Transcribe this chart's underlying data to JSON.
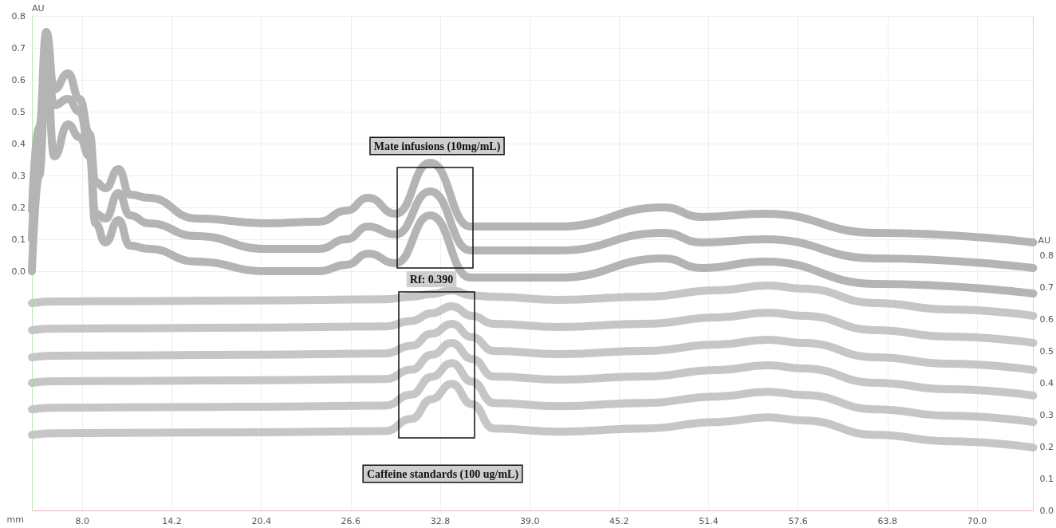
{
  "chart_data": {
    "type": "line",
    "xlabel": "mm",
    "ylabel": "AU",
    "y2label": "AU",
    "xlim": [
      4.5,
      73.9
    ],
    "xticks": [
      {
        "value": 8,
        "label": "8.0"
      },
      14.2,
      20.4,
      26.6,
      32.8,
      {
        "value": 39,
        "label": "39.0"
      },
      45.2,
      51.4,
      57.6,
      63.8,
      {
        "value": 70,
        "label": "70.0"
      }
    ],
    "ylim": [
      -0.75,
      0.8
    ],
    "yticks": [
      {
        "value": 0,
        "label": "0.0"
      },
      0.1,
      0.2,
      0.3,
      0.4,
      0.5,
      0.6,
      0.7,
      0.8
    ],
    "y2lim": [
      0,
      1.55
    ],
    "y2ticks": [
      {
        "value": 0,
        "label": "0.0"
      },
      0.1,
      0.2,
      0.3,
      0.4,
      0.5,
      0.6,
      0.7,
      0.8
    ],
    "grid": true,
    "annotations": [
      "Mate infusions (10mg/mL)",
      "Rf: 0.390",
      "Caffeine standards (100 ug/mL)"
    ],
    "series": [
      {
        "color": "#b4b4b4",
        "x": [
          4.5,
          5.0,
          5.5,
          6.05,
          7.0,
          7.8,
          8.5,
          8.9,
          9.6,
          10.5,
          11.3,
          12.6,
          15.9,
          20.7,
          24.4,
          26.3,
          27.8,
          29.7,
          32.1,
          34.9,
          41.0,
          48.3,
          50.9,
          55.3,
          63.1,
          73.9
        ],
        "values": [
          0.19,
          0.45,
          0.75,
          0.57,
          0.62,
          0.54,
          0.43,
          0.28,
          0.26,
          0.32,
          0.24,
          0.23,
          0.165,
          0.15,
          0.155,
          0.19,
          0.23,
          0.18,
          0.34,
          0.14,
          0.14,
          0.2,
          0.17,
          0.18,
          0.12,
          0.09
        ]
      },
      {
        "color": "#b4b4b4",
        "x": [
          4.5,
          5.0,
          5.5,
          6.05,
          7.0,
          7.8,
          8.5,
          8.9,
          9.6,
          10.5,
          11.3,
          12.6,
          15.9,
          20.7,
          24.4,
          26.3,
          27.8,
          29.7,
          32.1,
          34.9,
          41.0,
          48.3,
          50.9,
          55.3,
          63.1,
          73.9
        ],
        "values": [
          0.1,
          0.4,
          0.68,
          0.52,
          0.54,
          0.5,
          0.39,
          0.18,
          0.165,
          0.245,
          0.175,
          0.15,
          0.11,
          0.07,
          0.07,
          0.1,
          0.14,
          0.115,
          0.25,
          0.065,
          0.065,
          0.12,
          0.09,
          0.1,
          0.04,
          0.01
        ]
      },
      {
        "color": "#b4b4b4",
        "x": [
          4.5,
          5.0,
          5.5,
          6.05,
          7.0,
          7.8,
          8.5,
          8.9,
          9.6,
          10.5,
          11.3,
          12.6,
          15.9,
          20.7,
          24.4,
          26.3,
          27.8,
          29.7,
          32.1,
          34.9,
          41.0,
          48.3,
          50.9,
          55.3,
          63.1,
          73.9
        ],
        "values": [
          0.0,
          0.3,
          0.64,
          0.36,
          0.46,
          0.42,
          0.36,
          0.15,
          0.09,
          0.16,
          0.08,
          0.07,
          0.03,
          0.0,
          0.0,
          0.02,
          0.055,
          0.025,
          0.175,
          -0.02,
          -0.02,
          0.04,
          0.01,
          0.03,
          -0.04,
          -0.07
        ]
      },
      {
        "color": "#c6c6c6",
        "axis": "y2",
        "x": [
          4.5,
          6,
          20,
          29,
          30.8,
          32.2,
          33.6,
          35,
          36.5,
          41,
          47,
          52,
          55.5,
          58,
          63,
          68,
          73.9
        ],
        "values": [
          0.65,
          0.655,
          0.658,
          0.662,
          0.67,
          0.678,
          0.69,
          0.674,
          0.67,
          0.66,
          0.67,
          0.69,
          0.705,
          0.695,
          0.65,
          0.63,
          0.61
        ]
      },
      {
        "color": "#c6c6c6",
        "axis": "y2",
        "x": [
          4.5,
          6,
          20,
          29,
          30.8,
          32.2,
          33.6,
          35,
          36.5,
          41,
          47,
          52,
          55.5,
          58,
          63,
          68,
          73.9
        ],
        "values": [
          0.565,
          0.57,
          0.573,
          0.577,
          0.594,
          0.618,
          0.64,
          0.61,
          0.585,
          0.575,
          0.585,
          0.605,
          0.62,
          0.61,
          0.565,
          0.545,
          0.525
        ]
      },
      {
        "color": "#c6c6c6",
        "axis": "y2",
        "x": [
          4.5,
          6,
          20,
          29,
          30.8,
          32.2,
          33.6,
          35,
          36.5,
          41,
          47,
          52,
          55.5,
          58,
          63,
          68,
          73.9
        ],
        "values": [
          0.48,
          0.485,
          0.488,
          0.492,
          0.516,
          0.554,
          0.585,
          0.543,
          0.5,
          0.49,
          0.5,
          0.52,
          0.535,
          0.525,
          0.48,
          0.46,
          0.44
        ]
      },
      {
        "color": "#c6c6c6",
        "axis": "y2",
        "x": [
          4.5,
          6,
          20,
          29,
          30.8,
          32.2,
          33.6,
          35,
          36.5,
          41,
          47,
          52,
          55.5,
          58,
          63,
          68,
          73.9
        ],
        "values": [
          0.4,
          0.405,
          0.408,
          0.412,
          0.441,
          0.488,
          0.525,
          0.475,
          0.42,
          0.41,
          0.42,
          0.44,
          0.455,
          0.445,
          0.4,
          0.38,
          0.36
        ]
      },
      {
        "color": "#c6c6c6",
        "axis": "y2",
        "x": [
          4.5,
          6,
          20,
          29,
          30.8,
          32.2,
          33.6,
          35,
          36.5,
          41,
          47,
          52,
          55.5,
          58,
          63,
          68,
          73.9
        ],
        "values": [
          0.317,
          0.322,
          0.325,
          0.329,
          0.363,
          0.419,
          0.462,
          0.404,
          0.337,
          0.327,
          0.337,
          0.357,
          0.372,
          0.362,
          0.317,
          0.297,
          0.277
        ]
      },
      {
        "color": "#c6c6c6",
        "axis": "y2",
        "x": [
          4.5,
          6,
          20,
          29,
          30.8,
          32.2,
          33.6,
          35,
          36.5,
          41,
          47,
          52,
          55.5,
          58,
          63,
          68,
          73.9
        ],
        "values": [
          0.237,
          0.242,
          0.245,
          0.249,
          0.287,
          0.349,
          0.397,
          0.333,
          0.257,
          0.247,
          0.257,
          0.277,
          0.292,
          0.282,
          0.237,
          0.217,
          0.197
        ]
      }
    ]
  }
}
